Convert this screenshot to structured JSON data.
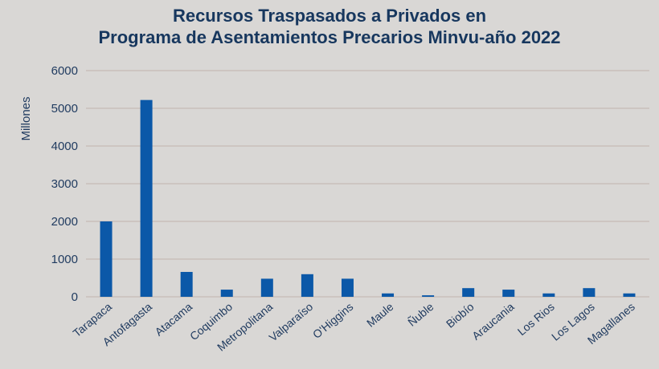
{
  "chart_data": {
    "type": "bar",
    "title_lines": [
      "Recursos Traspasados a Privados en",
      "Programa de Asentamientos Precarios Minvu-año 2022"
    ],
    "ylabel": "Millones",
    "xlabel": "",
    "ylim": [
      0,
      6000
    ],
    "yticks": [
      0,
      1000,
      2000,
      3000,
      4000,
      5000,
      6000
    ],
    "grid": true,
    "legend": "none",
    "colors": {
      "bar": "#0b58a8",
      "grid": "#c1b3ad",
      "text": "#17375e",
      "background": "#d9d7d5"
    },
    "categories": [
      "Tarapaca",
      "Antofagasta",
      "Atacama",
      "Coquimbo",
      "Metropolitana",
      "Valparaíso",
      "O'Higgins",
      "Maule",
      "Ñuble",
      "Biobío",
      "Araucania",
      "Los Rios",
      "Los Lagos",
      "Magallanes"
    ],
    "values": [
      2000,
      5220,
      660,
      190,
      480,
      600,
      480,
      90,
      40,
      230,
      190,
      90,
      230,
      90
    ]
  }
}
